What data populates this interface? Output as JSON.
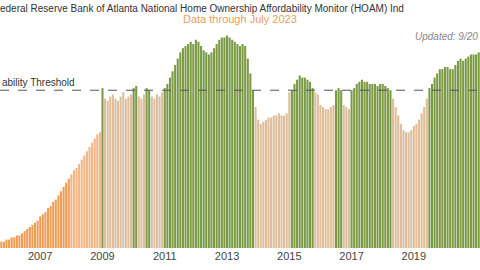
{
  "chart_data": {
    "type": "bar",
    "title": "ederal Reserve Bank of Atlanta National Home Ownership Affordability Monitor (HOAM) Ind",
    "subtitle": "Data through July 2023",
    "annotations": [
      "Updated: 9/20"
    ],
    "reference_line": {
      "value": 100,
      "label": "ability Threshold"
    },
    "categories": [
      null,
      null,
      null,
      null,
      null,
      null,
      null,
      null,
      null,
      null,
      null,
      null,
      null,
      null,
      null,
      "2007",
      null,
      null,
      null,
      null,
      null,
      null,
      null,
      null,
      null,
      null,
      null,
      null,
      null,
      null,
      null,
      null,
      null,
      null,
      null,
      null,
      null,
      null,
      null,
      "2009",
      null,
      null,
      null,
      null,
      null,
      null,
      null,
      null,
      null,
      null,
      null,
      null,
      null,
      null,
      null,
      null,
      null,
      null,
      null,
      null,
      null,
      null,
      null,
      "2011",
      null,
      null,
      null,
      null,
      null,
      null,
      null,
      null,
      null,
      null,
      null,
      null,
      null,
      null,
      null,
      null,
      null,
      null,
      null,
      null,
      null,
      null,
      null,
      "2013",
      null,
      null,
      null,
      null,
      null,
      null,
      null,
      null,
      null,
      null,
      null,
      null,
      null,
      null,
      null,
      null,
      null,
      null,
      null,
      null,
      null,
      null,
      null,
      "2015",
      null,
      null,
      null,
      null,
      null,
      null,
      null,
      null,
      null,
      null,
      null,
      null,
      null,
      null,
      null,
      null,
      null,
      null,
      null,
      null,
      null,
      null,
      null,
      "2017",
      null,
      null,
      null,
      null,
      null,
      null,
      null,
      null,
      null,
      null,
      null,
      null,
      null,
      null,
      null,
      null,
      null,
      null,
      null,
      null,
      null,
      null,
      null,
      "2019",
      null,
      null,
      null,
      null,
      null,
      null,
      null,
      null,
      null,
      null,
      null,
      null,
      null,
      null,
      null,
      null,
      null,
      null,
      null,
      null,
      null,
      null,
      null,
      null,
      null
    ],
    "values": [
      28,
      28,
      29,
      29,
      30,
      30,
      31,
      31,
      32,
      33,
      34,
      35,
      36,
      37,
      38,
      40,
      41,
      42,
      44,
      45,
      47,
      48,
      50,
      52,
      54,
      56,
      58,
      60,
      62,
      63,
      65,
      67,
      69,
      71,
      73,
      75,
      77,
      79,
      80,
      101,
      96,
      95,
      97,
      98,
      96,
      95,
      97,
      99,
      96,
      97,
      98,
      101,
      102,
      97,
      96,
      98,
      101,
      100,
      97,
      96,
      98,
      97,
      99,
      101,
      103,
      106,
      109,
      112,
      115,
      118,
      120,
      121,
      122,
      123,
      122,
      124,
      123,
      121,
      119,
      118,
      117,
      118,
      120,
      122,
      124,
      125,
      125,
      126,
      125,
      124,
      123,
      122,
      121,
      122,
      121,
      115,
      108,
      100,
      92,
      86,
      84,
      85,
      86,
      87,
      87,
      88,
      88,
      89,
      88,
      88,
      89,
      99,
      100,
      103,
      105,
      107,
      106,
      106,
      105,
      104,
      101,
      99,
      98,
      93,
      92,
      91,
      91,
      92,
      93,
      100,
      101,
      100,
      93,
      92,
      91,
      100,
      101,
      103,
      104,
      105,
      104,
      104,
      103,
      103,
      103,
      102,
      103,
      103,
      102,
      101,
      100,
      96,
      92,
      88,
      84,
      81,
      80,
      80,
      81,
      83,
      84,
      86,
      89,
      92,
      96,
      101,
      103,
      106,
      108,
      110,
      110,
      111,
      111,
      110,
      110,
      112,
      114,
      115,
      114,
      115,
      116,
      117,
      117,
      117,
      118
    ],
    "colors": [
      "#ee9d55",
      "#ee9d55",
      "#ee9d55",
      "#ee9d55",
      "#ee9d55",
      "#ee9d55",
      "#ee9d55",
      "#ee9d55",
      "#ee9d55",
      "#ee9d55",
      "#ee9d55",
      "#ee9d55",
      "#ee9d55",
      "#ee9d55",
      "#ee9d55",
      "#ee9d55",
      "#ee9d55",
      "#ee9d55",
      "#ee9d55",
      "#ee9d55",
      "#ee9d55",
      "#ee9d55",
      "#ee9d55",
      "#ee9d55",
      "#ee9d55",
      "#ee9d55",
      "#ee9d55",
      "#f2b585",
      "#f2b585",
      "#f2b585",
      "#f2b585",
      "#f2b585",
      "#f2b585",
      "#f2b585",
      "#f2b585",
      "#f2b585",
      "#f2b585",
      "#f2b585",
      "#f2b585",
      "#7a9a45",
      "#ddbd9c",
      "#ddbd9c",
      "#ddbd9c",
      "#ddbd9c",
      "#ddbd9c",
      "#ddbd9c",
      "#ddbd9c",
      "#ddbd9c",
      "#ddbd9c",
      "#ddbd9c",
      "#ddbd9c",
      "#7a9a45",
      "#7a9a45",
      "#ddbd9c",
      "#ddbd9c",
      "#ddbd9c",
      "#7a9a45",
      "#7a9a45",
      "#ddbd9c",
      "#ddbd9c",
      "#ddbd9c",
      "#ddbd9c",
      "#ddbd9c",
      "#7a9a45",
      "#7a9a45",
      "#7a9a45",
      "#7a9a45",
      "#7a9a45",
      "#7a9a45",
      "#7a9a45",
      "#7a9a45",
      "#7a9a45",
      "#7a9a45",
      "#7a9a45",
      "#7a9a45",
      "#7a9a45",
      "#7a9a45",
      "#7a9a45",
      "#7a9a45",
      "#7a9a45",
      "#7a9a45",
      "#7a9a45",
      "#7a9a45",
      "#7a9a45",
      "#7a9a45",
      "#7a9a45",
      "#7a9a45",
      "#7a9a45",
      "#7a9a45",
      "#7a9a45",
      "#7a9a45",
      "#7a9a45",
      "#7a9a45",
      "#7a9a45",
      "#7a9a45",
      "#7a9a45",
      "#7a9a45",
      "#7a9a45",
      "#ddbd9c",
      "#ddbd9c",
      "#ddbd9c",
      "#ddbd9c",
      "#ddbd9c",
      "#ddbd9c",
      "#ddbd9c",
      "#ddbd9c",
      "#ddbd9c",
      "#ddbd9c",
      "#ddbd9c",
      "#ddbd9c",
      "#ddbd9c",
      "#ddbd9c",
      "#7a9a45",
      "#7a9a45",
      "#7a9a45",
      "#7a9a45",
      "#7a9a45",
      "#7a9a45",
      "#7a9a45",
      "#7a9a45",
      "#7a9a45",
      "#ddbd9c",
      "#ddbd9c",
      "#ddbd9c",
      "#ddbd9c",
      "#ddbd9c",
      "#ddbd9c",
      "#ddbd9c",
      "#ddbd9c",
      "#7a9a45",
      "#7a9a45",
      "#7a9a45",
      "#ddbd9c",
      "#ddbd9c",
      "#ddbd9c",
      "#7a9a45",
      "#7a9a45",
      "#7a9a45",
      "#7a9a45",
      "#7a9a45",
      "#7a9a45",
      "#7a9a45",
      "#7a9a45",
      "#7a9a45",
      "#7a9a45",
      "#7a9a45",
      "#7a9a45",
      "#7a9a45",
      "#7a9a45",
      "#7a9a45",
      "#7a9a45",
      "#ddbd9c",
      "#ddbd9c",
      "#ddbd9c",
      "#ddbd9c",
      "#ddbd9c",
      "#ddbd9c",
      "#ddbd9c",
      "#ddbd9c",
      "#ddbd9c",
      "#ddbd9c",
      "#ddbd9c",
      "#ddbd9c",
      "#ddbd9c",
      "#ddbd9c",
      "#7a9a45",
      "#7a9a45",
      "#7a9a45",
      "#7a9a45",
      "#7a9a45",
      "#7a9a45",
      "#7a9a45",
      "#7a9a45",
      "#7a9a45",
      "#7a9a45",
      "#7a9a45",
      "#7a9a45",
      "#7a9a45",
      "#7a9a45",
      "#7a9a45",
      "#7a9a45",
      "#7a9a45",
      "#7a9a45",
      "#7a9a45",
      "#7a9a45"
    ],
    "ylim": [
      25,
      131
    ],
    "grid": false,
    "tick_labels": "x"
  }
}
